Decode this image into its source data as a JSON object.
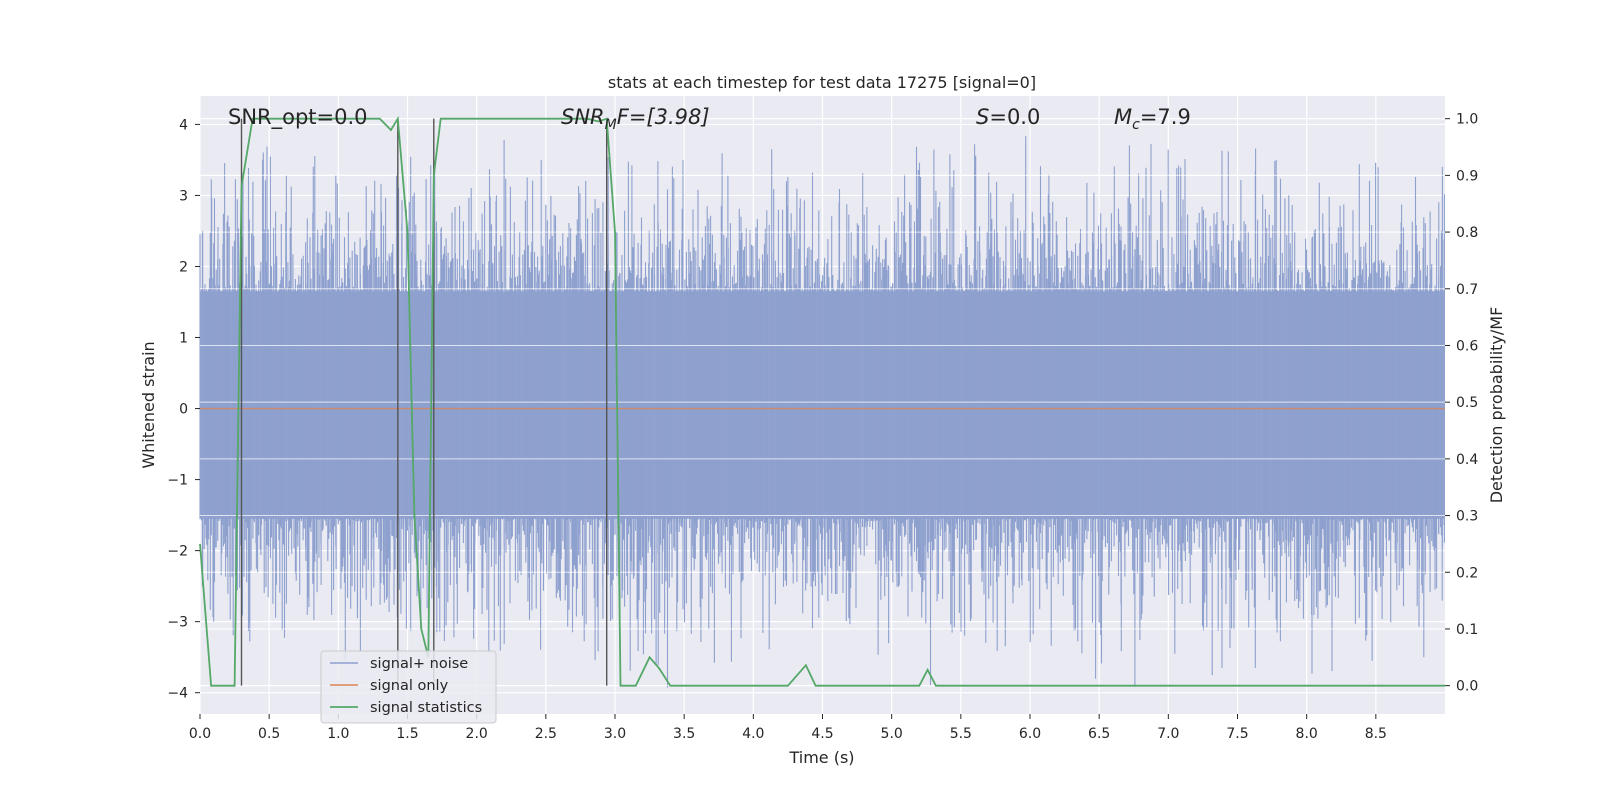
{
  "chart_data": {
    "type": "line",
    "title": "stats at each timestep for test data 17275 [signal=0]",
    "xlabel": "Time (s)",
    "ylabel_left": "Whitened strain",
    "ylabel_right": "Detection probability/MF",
    "xlim": [
      0,
      9
    ],
    "ylim_left": [
      -4.3,
      4.4
    ],
    "ylim_right": [
      -0.05,
      1.04
    ],
    "x_ticks": [
      0.0,
      0.5,
      1.0,
      1.5,
      2.0,
      2.5,
      3.0,
      3.5,
      4.0,
      4.5,
      5.0,
      5.5,
      6.0,
      6.5,
      7.0,
      7.5,
      8.0,
      8.5
    ],
    "x_tick_labels": [
      "0.0",
      "0.5",
      "1.0",
      "1.5",
      "2.0",
      "2.5",
      "3.0",
      "3.5",
      "4.0",
      "4.5",
      "5.0",
      "5.5",
      "6.0",
      "6.5",
      "7.0",
      "7.5",
      "8.0",
      "8.5"
    ],
    "y_left_ticks": [
      4,
      3,
      2,
      1,
      0,
      -1,
      -2,
      -3,
      -4
    ],
    "y_left_tick_labels": [
      "4",
      "3",
      "2",
      "1",
      "0",
      "−1",
      "−2",
      "−3",
      "−4"
    ],
    "y_right_ticks": [
      1.0,
      0.9,
      0.8,
      0.7,
      0.6,
      0.5,
      0.4,
      0.3,
      0.2,
      0.1,
      0.0
    ],
    "y_right_tick_labels": [
      "1.0",
      "0.9",
      "0.8",
      "0.7",
      "0.6",
      "0.5",
      "0.4",
      "0.3",
      "0.2",
      "0.1",
      "0.0"
    ],
    "grid": true,
    "legend_position": "lower-left",
    "annotations": {
      "snr_opt": "SNR_opt=0.0",
      "snr_mf_main": "SNR",
      "snr_mf_sub": "M",
      "snr_mf_rest": "F=[3.98]",
      "s_main": "S",
      "s_rest": "=0.0",
      "mc_main": "M",
      "mc_sub": "c",
      "mc_rest": "=7.9"
    },
    "vertical_markers_x": [
      0.3,
      1.43,
      1.69,
      2.94
    ],
    "series": [
      {
        "name": "signal+ noise",
        "color": "#8ea0ce",
        "kind": "noise",
        "core_range": [
          -1.55,
          1.65
        ],
        "extreme_range": [
          -4.0,
          3.85
        ]
      },
      {
        "name": "signal only",
        "color": "#dd8452",
        "x": [
          0,
          9
        ],
        "y": [
          0,
          0
        ]
      },
      {
        "name": "signal statistics",
        "color": "#55a868",
        "axis": "right",
        "x": [
          0.0,
          0.08,
          0.25,
          0.3,
          0.38,
          0.5,
          1.0,
          1.3,
          1.38,
          1.43,
          1.5,
          1.55,
          1.6,
          1.65,
          1.69,
          1.74,
          2.0,
          2.5,
          2.8,
          2.88,
          2.94,
          3.0,
          3.04,
          3.1,
          3.15,
          3.25,
          3.32,
          3.4,
          3.6,
          3.9,
          4.25,
          4.38,
          4.45,
          4.65,
          4.75,
          5.2,
          5.26,
          5.32,
          5.6,
          6.0,
          9.0
        ],
        "y": [
          0.25,
          0.0,
          0.0,
          0.88,
          1.0,
          1.0,
          1.0,
          1.0,
          0.98,
          1.0,
          0.8,
          0.3,
          0.1,
          0.05,
          0.9,
          1.0,
          1.0,
          1.0,
          1.0,
          0.995,
          1.0,
          0.8,
          0.0,
          0.0,
          0.0,
          0.05,
          0.03,
          0.0,
          0.0,
          0.0,
          0.0,
          0.036,
          0.0,
          0.0,
          0.0,
          0.0,
          0.028,
          0.0,
          0.0,
          0.0,
          0.0
        ]
      }
    ]
  }
}
